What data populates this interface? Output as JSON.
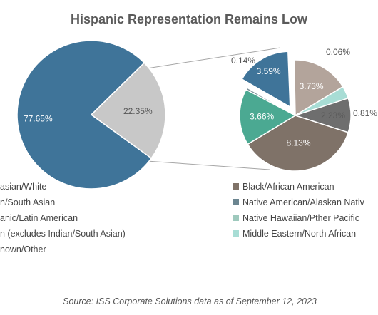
{
  "chart_data": {
    "type": "pie",
    "title": "Hispanic Representation Remains Low",
    "main_pie": {
      "slices": [
        {
          "label": "77.65%",
          "value": 77.65,
          "color": "#3f7499"
        },
        {
          "label": "22.35%",
          "value": 22.35,
          "color": "#c8c8c8"
        }
      ]
    },
    "detail_pie": {
      "slices": [
        {
          "label": "3.59%",
          "value": 3.59,
          "color": "#3f7499",
          "exploded": true
        },
        {
          "label": "0.06%",
          "value": 0.06,
          "color": "#8a9ba5"
        },
        {
          "label": "3.73%",
          "value": 3.73,
          "color": "#b3a49b"
        },
        {
          "label": "0.81%",
          "value": 0.81,
          "color": "#a8ddd5"
        },
        {
          "label": "2.23%",
          "value": 2.23,
          "color": "#6e6e6e"
        },
        {
          "label": "8.13%",
          "value": 8.13,
          "color": "#7f7268"
        },
        {
          "label": "3.66%",
          "value": 3.66,
          "color": "#4ba992"
        },
        {
          "label": "0.14%",
          "value": 0.14,
          "color": "#7a8f96"
        }
      ]
    },
    "legend": [
      {
        "label": "asian/White",
        "color": "#3f7499"
      },
      {
        "label": "n/South Asian",
        "color": "#c8c8c8"
      },
      {
        "label": "anic/Latin American",
        "color": "#4ba992"
      },
      {
        "label": "n (excludes Indian/South Asian)",
        "color": "#b3a49b"
      },
      {
        "label": "nown/Other",
        "color": "#6e6e6e"
      },
      {
        "label": "Black/African American",
        "color": "#7f7268"
      },
      {
        "label": "Native American/Alaskan Nativ",
        "color": "#6b8590"
      },
      {
        "label": "Native Hawaiian/Pther Pacific",
        "color": "#9ec9bd"
      },
      {
        "label": "Middle Eastern/North African",
        "color": "#a8ddd5"
      }
    ],
    "source": "Source: ISS Corporate Solutions data as of September 12, 2023"
  }
}
